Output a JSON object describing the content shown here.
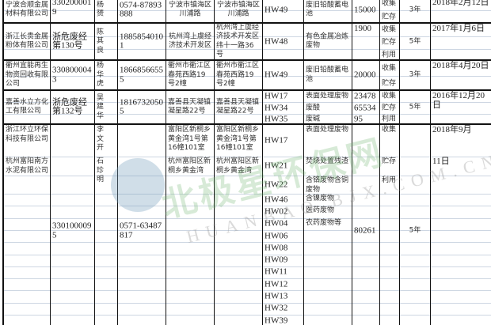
{
  "columns": [
    "company",
    "code",
    "contact",
    "phone",
    "reg_addr",
    "op_addr",
    "hw",
    "waste",
    "qty",
    "method",
    "term",
    "date"
  ],
  "rows": [
    {
      "company": "宁波合顺金属材料有限公司",
      "code": "3302000019",
      "contact": "杨赟",
      "phone": "0574-87893888",
      "reg_addr": "宁波市镇海区川浦路",
      "op_addr": "宁波市镇海区川浦路",
      "hw": "HW49",
      "waste": "废旧铅酸蓄电池",
      "qty": "15000",
      "method": [
        "收集",
        "贮存"
      ],
      "term": "3年",
      "date": "2018年2月12日"
    },
    {
      "company": "浙江长贵金属粉体有限公司",
      "code": "浙危废经第130号",
      "contact": "陈其良",
      "phone": "18858540101",
      "reg_addr": "杭州湾上虞经济技术开发区",
      "op_addr": "杭州湾上虞经济技术开发区纬十一路36号",
      "hw": "HW48",
      "waste": "有色金属冶炼废物",
      "qty": "1900",
      "method": [
        "收集",
        "贮存",
        "利用"
      ],
      "term": "5年",
      "date": "2017年1月6日"
    },
    {
      "company": "衢州宜能再生物资回收有限公司",
      "code": "3308000043",
      "contact": "杨华虎",
      "phone": "18668566555",
      "reg_addr": "衢州市衢江区春苑西路19号2幢",
      "op_addr": "衢州市衢江区春苑西路19号2幢",
      "hw": "HW49",
      "waste": "废旧铅酸蓄电池",
      "qty": "20000",
      "method": [
        "收集",
        "贮存"
      ],
      "term": "3年",
      "date": "2018年4月20日"
    },
    {
      "company": "嘉善水立方化工有限公司",
      "code": "浙危废经第132号",
      "contact": "吴建华",
      "phone": "18167320505",
      "reg_addr": "嘉善县天凝镇凝星路22号",
      "op_addr": "嘉善县天凝镇凝星路22号",
      "hw": [
        "HW17",
        "HW34",
        "HW35"
      ],
      "waste": [
        "表面处理废物",
        "废酸",
        "废碱"
      ],
      "qty": [
        "23478",
        "65534",
        "95"
      ],
      "method": [
        "收集",
        "贮存",
        "利用"
      ],
      "term": "5年",
      "date": "2016年12月20日"
    },
    {
      "company": [
        "浙江环立环保科技有限公司",
        "杭州富阳南方水泥有限公司"
      ],
      "code": "3301000095",
      "contact": [
        "李文开",
        "石珍明"
      ],
      "phone": "0571-63487817",
      "reg_addr": [
        "富阳区新桐乡黄金湾1号第16幢101室",
        "杭州富阳区新桐乡黄金湾"
      ],
      "op_addr": [
        "富阳区新桐乡黄金湾1号第16幢101室",
        "杭州富阳区新桐乡黄金湾"
      ],
      "hw": [
        "HW17",
        "HW21",
        "HW22",
        "HW46",
        "HW02",
        "HW04",
        "HW06",
        "HW08",
        "HW09",
        "HW11",
        "HW12",
        "HW13",
        "HW32",
        "HW39"
      ],
      "waste": [
        "表面处理废物",
        "焚烧处置残渣",
        "含铬废物含铜废物",
        "含镍废物",
        "医药废物",
        "农药废物等"
      ],
      "qty": "80261",
      "method": [
        "收集",
        "贮存",
        "利用"
      ],
      "term": "5年",
      "date": [
        "2018年9月",
        "11日"
      ]
    }
  ],
  "watermark": {
    "logo_text": "北极星环保网",
    "url": "HUANBAO.BJX.COM.CN",
    "colors": {
      "green": "#6eb46e",
      "blue": "#78a0be"
    }
  }
}
